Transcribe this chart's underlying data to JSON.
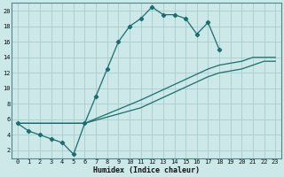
{
  "xlabel": "Humidex (Indice chaleur)",
  "xlim": [
    -0.5,
    23.5
  ],
  "ylim": [
    1,
    21
  ],
  "xticks": [
    0,
    1,
    2,
    3,
    4,
    5,
    6,
    7,
    8,
    9,
    10,
    11,
    12,
    13,
    14,
    15,
    16,
    17,
    18,
    19,
    20,
    21,
    22,
    23
  ],
  "yticks": [
    2,
    4,
    6,
    8,
    10,
    12,
    14,
    16,
    18,
    20
  ],
  "bg_color": "#cce8e8",
  "line_color": "#1a6e6e",
  "grid_color": "#aacccc",
  "lines": [
    {
      "x": [
        0,
        1,
        2,
        3,
        4,
        5,
        6,
        7,
        8,
        9,
        10,
        11,
        12,
        13,
        14,
        15,
        16,
        17,
        18
      ],
      "y": [
        5.5,
        4.5,
        4.0,
        3.5,
        3.0,
        1.5,
        5.5,
        9.0,
        12.5,
        16.0,
        18.0,
        19.0,
        20.5,
        19.5,
        19.5,
        19.0,
        17.0,
        18.5,
        15.0
      ],
      "markers": [
        true,
        true,
        true,
        true,
        true,
        true,
        true,
        true,
        true,
        true,
        true,
        true,
        true,
        true,
        true,
        true,
        true,
        true,
        true
      ]
    },
    {
      "x": [
        0,
        6,
        11,
        14,
        17,
        18,
        20,
        21,
        22,
        23
      ],
      "y": [
        5.5,
        5.5,
        8.5,
        10.5,
        12.5,
        13.0,
        13.5,
        14.0,
        14.0,
        14.0
      ],
      "markers": [
        false,
        false,
        false,
        false,
        false,
        false,
        false,
        false,
        false,
        false
      ]
    },
    {
      "x": [
        0,
        6,
        11,
        14,
        17,
        18,
        20,
        21,
        22,
        23
      ],
      "y": [
        5.5,
        5.5,
        7.5,
        9.5,
        11.5,
        12.0,
        12.5,
        13.0,
        13.5,
        13.5
      ],
      "markers": [
        false,
        false,
        false,
        false,
        false,
        false,
        false,
        false,
        false,
        false
      ]
    }
  ]
}
